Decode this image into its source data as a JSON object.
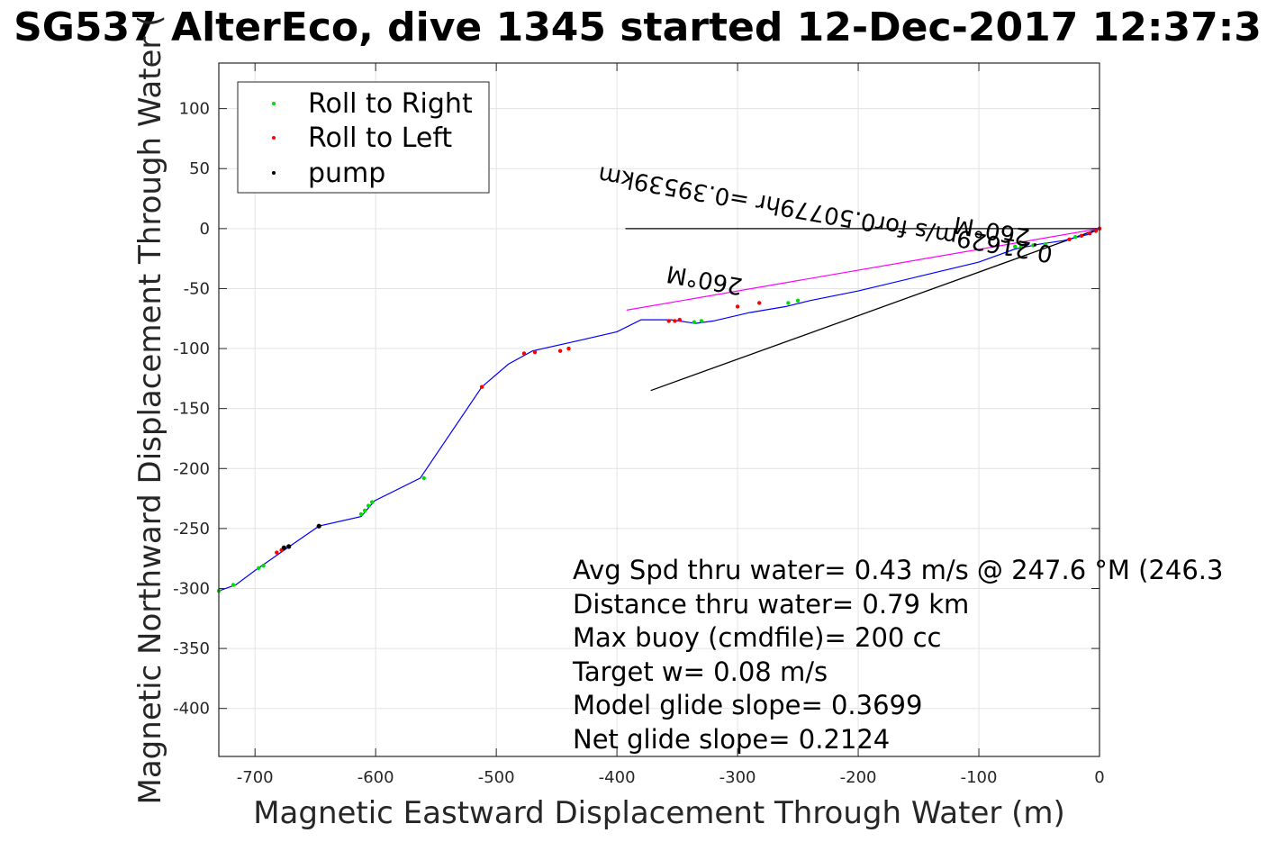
{
  "chart_data": {
    "type": "line",
    "title": "SG537 AlterEco, dive 1345 started 12-Dec-2017 12:37:3",
    "xlabel": "Magnetic Eastward Displacement Through Water (m)",
    "ylabel": "Magnetic Northward Displacement Through Water (",
    "xlim": [
      -730,
      0
    ],
    "ylim": [
      -440,
      138
    ],
    "xticks": [
      -700,
      -600,
      -500,
      -400,
      -300,
      -200,
      -100,
      0
    ],
    "yticks": [
      100,
      50,
      0,
      -50,
      -100,
      -150,
      -200,
      -250,
      -300,
      -350,
      -400
    ],
    "grid": true,
    "legend": {
      "placement": "top-left",
      "entries": [
        {
          "label": "Roll to Right",
          "color": "#00dd00"
        },
        {
          "label": "Roll to Left",
          "color": "#ff0000"
        },
        {
          "label": "pump",
          "color": "#000000"
        }
      ]
    },
    "colors": {
      "track": "#0000ff",
      "heading_line": "#ff00ff",
      "roll_right": "#00dd00",
      "roll_left": "#ff0000",
      "pump": "#000000"
    },
    "series": [
      {
        "type": "line",
        "role": "track",
        "x": [
          0,
          -10,
          -30,
          -50,
          -70,
          -100,
          -150,
          -200,
          -240,
          -260,
          -290,
          -320,
          -335,
          -355,
          -380,
          -400,
          -430,
          -470,
          -490,
          -512,
          -563,
          -601,
          -612,
          -647,
          -673,
          -700,
          -716,
          -730
        ],
        "y": [
          0,
          -5,
          -10,
          -13,
          -17,
          -28,
          -40,
          -52,
          -60,
          -65,
          -70,
          -77,
          -79,
          -76,
          -76,
          -86,
          -93,
          -102,
          -113,
          -132,
          -208,
          -227,
          -240,
          -248,
          -266,
          -285,
          -297,
          -302
        ]
      },
      {
        "type": "scatter",
        "role": "roll_right",
        "x": [
          -20,
          -45,
          -55,
          -65,
          -70,
          -250,
          -258,
          -330,
          -336,
          -560,
          -603,
          -606,
          -609,
          -612,
          -693,
          -697,
          -718,
          -730
        ],
        "y": [
          -7,
          -13,
          -14,
          -15,
          -15,
          -60,
          -62,
          -77,
          -78,
          -208,
          -228,
          -231,
          -235,
          -238,
          -281,
          -283,
          -297,
          -302
        ]
      },
      {
        "type": "scatter",
        "role": "roll_left",
        "x": [
          0,
          -3,
          -8,
          -15,
          -25,
          -282,
          -300,
          -348,
          -352,
          -357,
          -440,
          -447,
          -468,
          -477,
          -512,
          -678,
          -682
        ],
        "y": [
          0,
          -2,
          -4,
          -6,
          -9,
          -62,
          -65,
          -76,
          -77,
          -77,
          -100,
          -102,
          -103,
          -104,
          -132,
          -268,
          -270
        ]
      },
      {
        "type": "scatter",
        "role": "pump",
        "x": [
          -647,
          -676,
          -672
        ],
        "y": [
          -248,
          -266,
          -265
        ]
      },
      {
        "type": "line",
        "role": "heading_line",
        "x": [
          0,
          -392
        ],
        "y": [
          0,
          -68
        ]
      }
    ],
    "reference_lines": [
      {
        "x": [
          0,
          -393
        ],
        "y": [
          0,
          0
        ]
      },
      {
        "x": [
          0,
          -372
        ],
        "y": [
          0,
          -135
        ]
      }
    ],
    "annotations": [
      {
        "text": "260°M",
        "x": -57,
        "y": -1,
        "rotation": 190
      },
      {
        "text": "0.21629m/s for0.50779hr =0.39539km",
        "x": -38,
        "y": -15,
        "rotation": 190
      },
      {
        "text": "260°M",
        "x": -295,
        "y": -42,
        "rotation": 190
      }
    ],
    "stats": [
      "Avg Spd thru water=  0.43 m/s @ 247.6 °M (246.3",
      "Distance thru water=  0.79 km",
      "Max buoy (cmdfile)= 200 cc",
      "Target w= 0.08 m/s",
      "Model glide slope= 0.3699",
      "Net glide slope= 0.2124"
    ]
  }
}
